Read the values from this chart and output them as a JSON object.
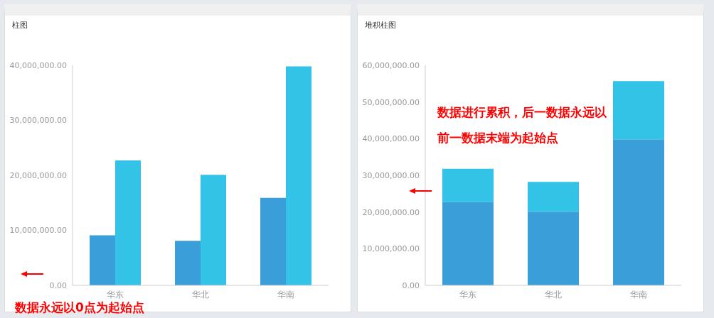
{
  "chart_data": [
    {
      "type": "bar",
      "title": "柱图",
      "categories": [
        "华东",
        "华北",
        "华南"
      ],
      "series": [
        {
          "color": "#3a9fd8",
          "values": [
            9100000,
            8100000,
            15900000
          ]
        },
        {
          "color": "#33c3e6",
          "values": [
            22700000,
            20100000,
            39800000
          ]
        }
      ],
      "ylim": [
        0,
        40000000
      ],
      "yticks": [
        {
          "value": 0,
          "label": "0.00"
        },
        {
          "value": 10000000,
          "label": "10,000,000.00"
        },
        {
          "value": 20000000,
          "label": "20,000,000.00"
        },
        {
          "value": 30000000,
          "label": "30,000,000.00"
        },
        {
          "value": 40000000,
          "label": "40,000,000.00"
        }
      ],
      "grid": false,
      "annotations": [
        "数据永远以0点为起始点"
      ]
    },
    {
      "type": "bar",
      "title": "堆积柱图",
      "categories": [
        "华东",
        "华北",
        "华南"
      ],
      "stacked": true,
      "series": [
        {
          "color": "#3a9fd8",
          "values": [
            22700000,
            20100000,
            39800000
          ]
        },
        {
          "color": "#33c3e6",
          "values": [
            9100000,
            8100000,
            15900000
          ]
        }
      ],
      "ylim": [
        0,
        60000000
      ],
      "yticks": [
        {
          "value": 0,
          "label": "0.00"
        },
        {
          "value": 10000000,
          "label": "10,000,000.00"
        },
        {
          "value": 20000000,
          "label": "20,000,000.00"
        },
        {
          "value": 30000000,
          "label": "30,000,000.00"
        },
        {
          "value": 40000000,
          "label": "40,000,000.00"
        },
        {
          "value": 50000000,
          "label": "50,000,000.00"
        },
        {
          "value": 60000000,
          "label": "60,000,000.00"
        }
      ],
      "grid": false,
      "annotations": [
        "数据进行累积，后一数据永远以前一数据末端为起始点"
      ]
    }
  ]
}
